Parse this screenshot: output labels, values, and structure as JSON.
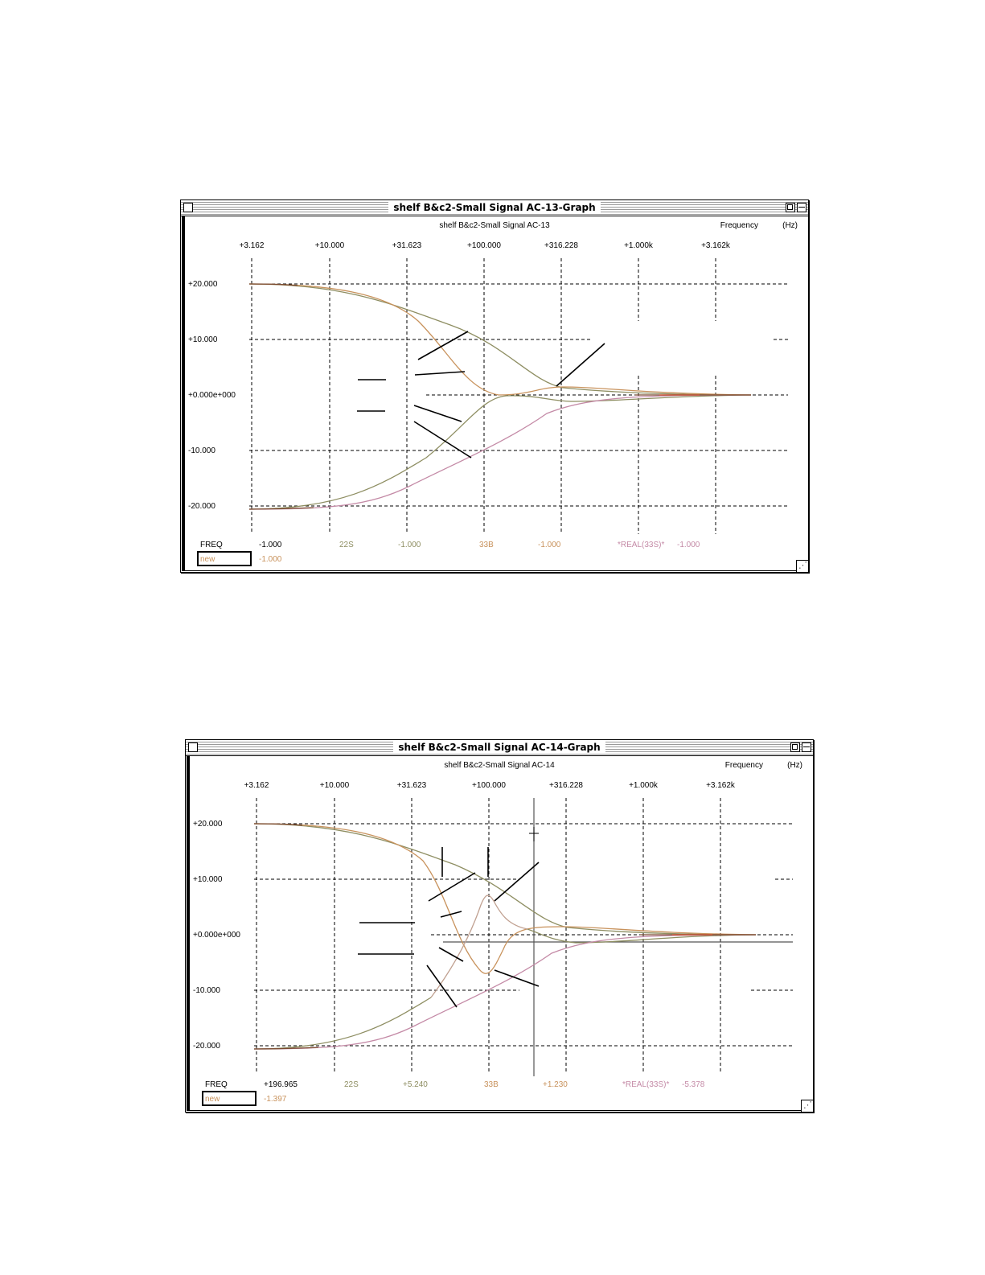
{
  "graphs": [
    {
      "window_title": "shelf B&c2-Small Signal AC-13-Graph",
      "plot_title": "shelf B&c2-Small Signal AC-13",
      "x_axis_label": "Frequency",
      "x_axis_unit": "(Hz)",
      "x_ticks": [
        "+3.162",
        "+10.000",
        "+31.623",
        "+100.000",
        "+316.228",
        "+1.000k",
        "+3.162k"
      ],
      "y_ticks": [
        "+20.000",
        "+10.000",
        "+0.000e+000",
        "-10.000",
        "-20.000"
      ],
      "readout": {
        "freq_label": "FREQ",
        "freq_value": "-1.000",
        "input_value": "new",
        "input_below": "-1.000",
        "s1_name": "22S",
        "s1_value": "-1.000",
        "s2_name": "33B",
        "s2_value": "-1.000",
        "s3_name": "*REAL(33S)*",
        "s3_value": "-1.000"
      },
      "colors": {
        "s1": "#8e8e62",
        "s2": "#c8925c",
        "s3": "#c48aa6",
        "dark": "#7a4a30",
        "grid": "#000000"
      }
    },
    {
      "window_title": "shelf B&c2-Small Signal AC-14-Graph",
      "plot_title": "shelf B&c2-Small Signal AC-14",
      "x_axis_label": "Frequency",
      "x_axis_unit": "(Hz)",
      "x_ticks": [
        "+3.162",
        "+10.000",
        "+31.623",
        "+100.000",
        "+316.228",
        "+1.000k",
        "+3.162k"
      ],
      "y_ticks": [
        "+20.000",
        "+10.000",
        "+0.000e+000",
        "-10.000",
        "-20.000"
      ],
      "readout": {
        "freq_label": "FREQ",
        "freq_value": "+196.965",
        "input_value": "new",
        "input_below": "-1.397",
        "s1_name": "22S",
        "s1_value": "+5.240",
        "s2_name": "33B",
        "s2_value": "+1.230",
        "s3_name": "*REAL(33S)*",
        "s3_value": "-5.378"
      },
      "colors": {
        "s1": "#8e8e62",
        "s2": "#c8925c",
        "s3": "#c48aa6",
        "dark": "#7a4a30",
        "grid": "#000000"
      }
    }
  ]
}
